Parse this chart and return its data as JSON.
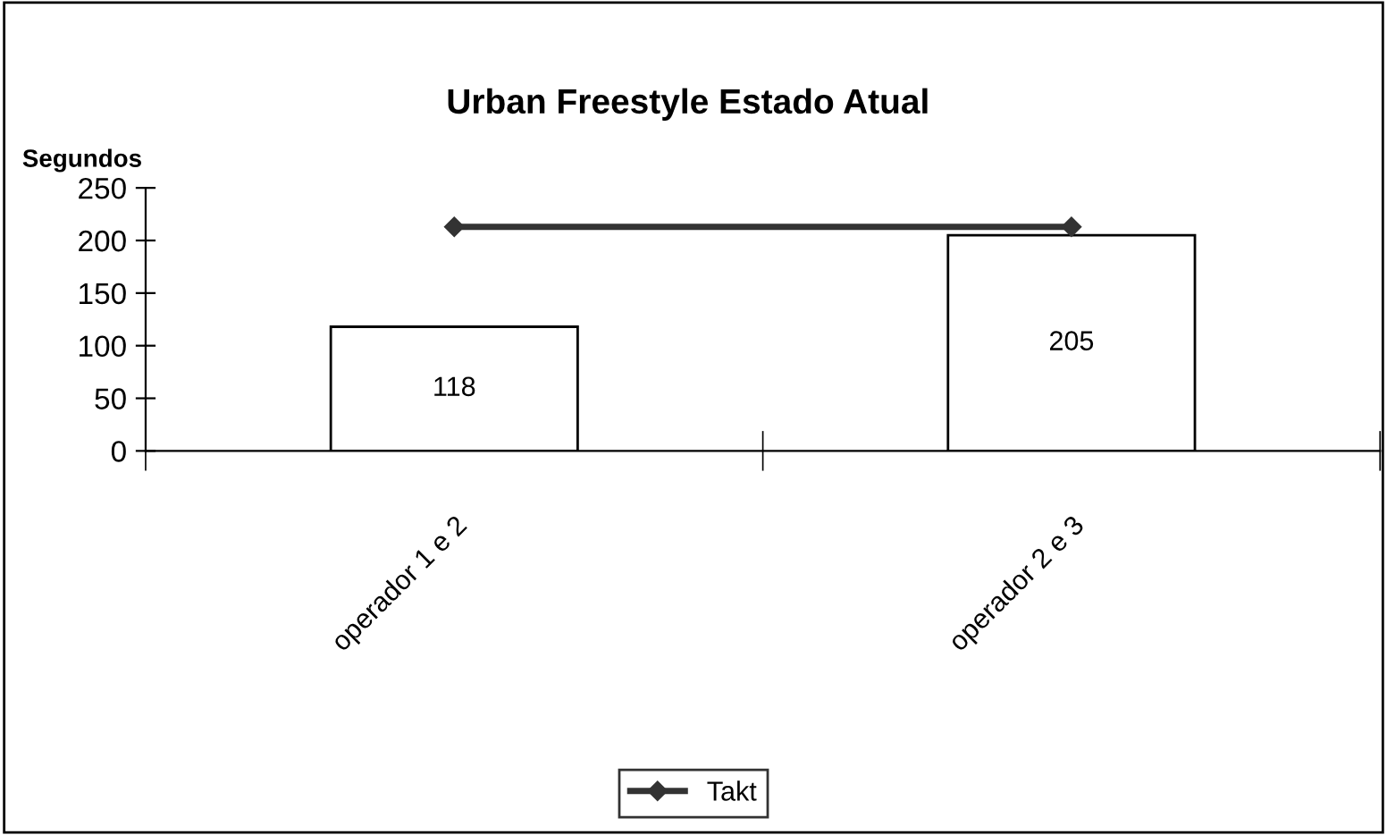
{
  "chart_data": {
    "type": "bar",
    "title": "Urban Freestyle Estado Atual",
    "ylabel": "Segundos",
    "categories": [
      "operador 1 e 2",
      "operador 2 e 3"
    ],
    "series": [
      {
        "color": "#ffffff",
        "values": [
          118,
          205
        ],
        "data_labels": true
      },
      {
        "type": "line",
        "name": "Takt",
        "color": "#333333",
        "values": [
          213,
          213
        ],
        "marker": "diamond"
      }
    ],
    "ylim": [
      0,
      250
    ],
    "yticks": [
      0,
      50,
      100,
      150,
      200,
      250
    ],
    "grid": false,
    "legend": "bottom"
  }
}
